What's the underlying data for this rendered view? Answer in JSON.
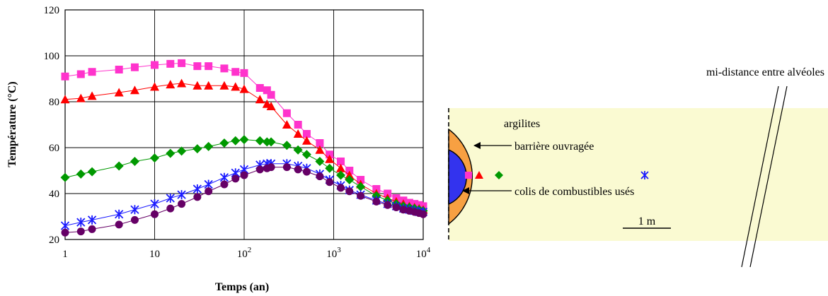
{
  "chart_data": {
    "type": "line",
    "xscale": "log",
    "xlim": [
      1,
      10000
    ],
    "ylim": [
      20,
      120
    ],
    "grid": true,
    "xlabel": "Temps (an)",
    "ylabel": "Température (°C)",
    "x_ticks": [
      {
        "value": 1,
        "label": "1",
        "exp": ""
      },
      {
        "value": 10,
        "label": "10",
        "exp": ""
      },
      {
        "value": 100,
        "label": "10",
        "exp": "2"
      },
      {
        "value": 1000,
        "label": "10",
        "exp": "3"
      },
      {
        "value": 10000,
        "label": "10",
        "exp": "4"
      }
    ],
    "y_ticks": [
      {
        "value": 20,
        "label": "20"
      },
      {
        "value": 40,
        "label": "40"
      },
      {
        "value": 60,
        "label": "60"
      },
      {
        "value": 80,
        "label": "80"
      },
      {
        "value": 100,
        "label": "100"
      },
      {
        "value": 120,
        "label": "120"
      }
    ],
    "series": [
      {
        "marker": "square",
        "color": "#ff33cc",
        "x": [
          1,
          1.5,
          2,
          4,
          6,
          10,
          15,
          20,
          30,
          40,
          60,
          80,
          100,
          150,
          180,
          200,
          300,
          400,
          500,
          700,
          900,
          1200,
          1500,
          2000,
          3000,
          4000,
          5000,
          6000,
          7000,
          8000,
          9000,
          10000
        ],
        "y": [
          91,
          92,
          93,
          94,
          95,
          96,
          96.5,
          96.8,
          95.5,
          95.5,
          94.5,
          93,
          92.5,
          86,
          85,
          83,
          75,
          70,
          66,
          62,
          57,
          54,
          50,
          46,
          42,
          40,
          38,
          37,
          36,
          35.5,
          35,
          34.5
        ]
      },
      {
        "marker": "triangle",
        "color": "#ff0000",
        "x": [
          1,
          1.5,
          2,
          4,
          6,
          10,
          15,
          20,
          30,
          40,
          60,
          80,
          100,
          150,
          180,
          200,
          300,
          400,
          500,
          700,
          900,
          1200,
          1500,
          2000,
          3000,
          4000,
          5000,
          6000,
          7000,
          8000,
          9000,
          10000
        ],
        "y": [
          81,
          81.5,
          82.5,
          84,
          85,
          86.5,
          87.5,
          88,
          87,
          87,
          87,
          86.5,
          85.5,
          81,
          79,
          78,
          70,
          66,
          63,
          59,
          55,
          51,
          48,
          44,
          40,
          38,
          36.5,
          35.5,
          34.5,
          34,
          33.5,
          33
        ]
      },
      {
        "marker": "diamond",
        "color": "#009900",
        "x": [
          1,
          1.5,
          2,
          4,
          6,
          10,
          15,
          20,
          30,
          40,
          60,
          80,
          100,
          150,
          180,
          200,
          300,
          400,
          500,
          700,
          900,
          1200,
          1500,
          2000,
          3000,
          4000,
          5000,
          6000,
          7000,
          8000,
          9000,
          10000
        ],
        "y": [
          47,
          48.5,
          49.5,
          52,
          54,
          55.5,
          57.5,
          58.5,
          59.5,
          60.5,
          62,
          63,
          63.5,
          63,
          62.5,
          62.5,
          61,
          59,
          57,
          54,
          51,
          48,
          46,
          43,
          39,
          37,
          35.5,
          34.5,
          34,
          33.5,
          33,
          32.5
        ]
      },
      {
        "marker": "star",
        "color": "#1a1aff",
        "x": [
          1,
          1.5,
          2,
          4,
          6,
          10,
          15,
          20,
          30,
          40,
          60,
          80,
          100,
          150,
          180,
          200,
          300,
          400,
          500,
          700,
          900,
          1200,
          1500,
          2000,
          3000,
          4000,
          5000,
          6000,
          7000,
          8000,
          9000,
          10000
        ],
        "y": [
          26,
          27.5,
          28.5,
          31,
          33,
          35.5,
          38,
          39.5,
          42,
          44,
          47,
          49,
          50.5,
          52.5,
          53,
          53,
          53,
          52,
          51,
          48.5,
          46,
          43.5,
          41.5,
          39.5,
          37,
          35.5,
          34.5,
          33.5,
          33,
          32.5,
          32,
          32
        ]
      },
      {
        "marker": "circle",
        "color": "#660066",
        "x": [
          1,
          1.5,
          2,
          4,
          6,
          10,
          15,
          20,
          30,
          40,
          60,
          80,
          100,
          150,
          180,
          200,
          300,
          400,
          500,
          700,
          900,
          1200,
          1500,
          2000,
          3000,
          4000,
          5000,
          6000,
          7000,
          8000,
          9000,
          10000
        ],
        "y": [
          23,
          23.5,
          24.5,
          26.5,
          28.5,
          31,
          33.5,
          35.5,
          38.5,
          41,
          44,
          46.5,
          48,
          50.5,
          51,
          51.5,
          51.5,
          50.5,
          49.5,
          47.5,
          45,
          42.5,
          41,
          39,
          36.5,
          35,
          34,
          33,
          32.5,
          32,
          31.5,
          31
        ]
      }
    ]
  },
  "diagram": {
    "label_mid_distance": "mi-distance entre alvéoles",
    "label_argilites": "argilites",
    "label_barriere": "barrière ouvragée",
    "label_colis": "colis de combustibles usés",
    "label_scale": "1 m",
    "colors": {
      "argilite": "#fafad2",
      "barriere": "#f7a042",
      "colis": "#3333ee"
    },
    "markers": [
      {
        "marker": "square",
        "color": "#ff33cc"
      },
      {
        "marker": "triangle",
        "color": "#ff0000"
      },
      {
        "marker": "diamond",
        "color": "#009900"
      },
      {
        "marker": "star",
        "color": "#1a1aff"
      }
    ]
  }
}
